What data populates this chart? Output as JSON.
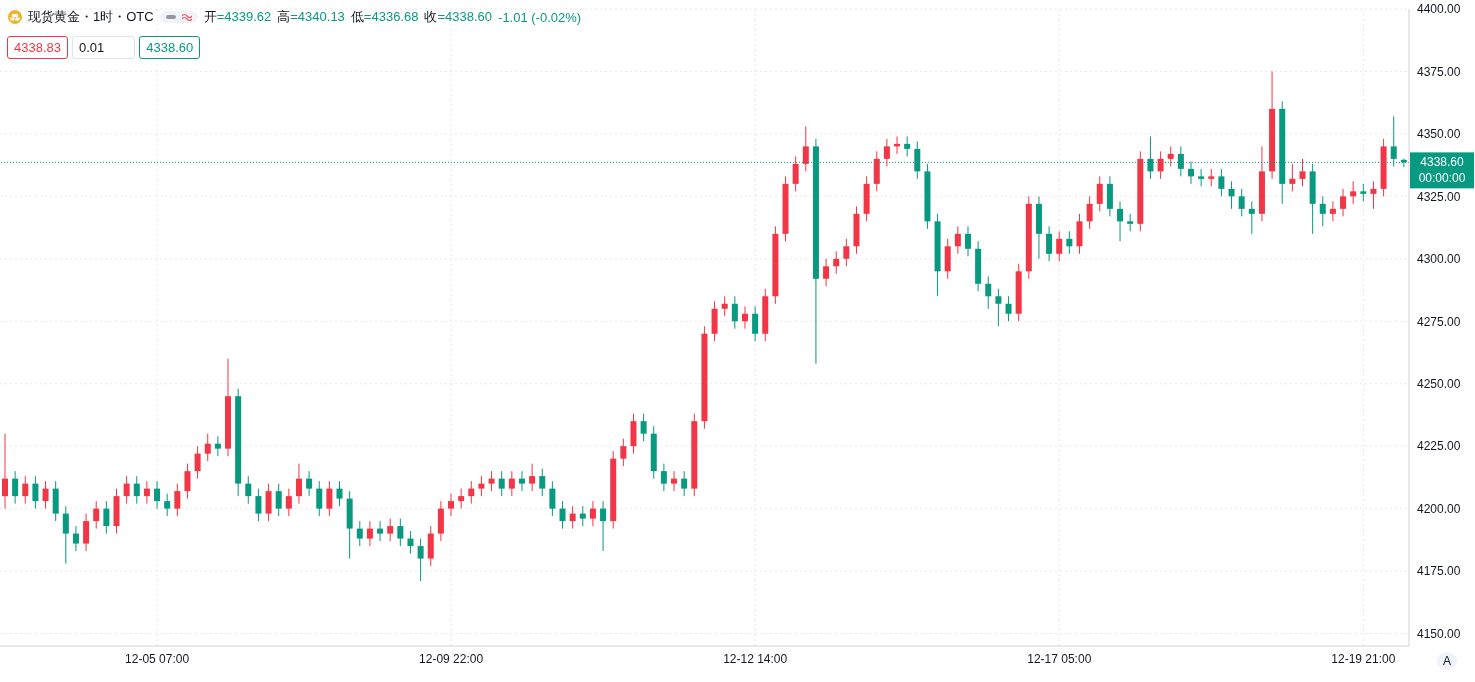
{
  "chart_data": {
    "type": "candlestick",
    "title": "现货黄金・1时・OTC",
    "categories": [
      null,
      null,
      null,
      null,
      null,
      null,
      null,
      null,
      null,
      null,
      null,
      null,
      null,
      null,
      null,
      "12-05 07:00",
      null,
      null,
      null,
      null,
      null,
      null,
      null,
      null,
      null,
      null,
      null,
      null,
      null,
      null,
      null,
      null,
      null,
      null,
      null,
      null,
      null,
      null,
      null,
      null,
      null,
      null,
      null,
      null,
      "12-09 22:00",
      null,
      null,
      null,
      null,
      null,
      null,
      null,
      null,
      null,
      null,
      null,
      null,
      null,
      null,
      null,
      null,
      null,
      null,
      null,
      null,
      null,
      null,
      null,
      null,
      null,
      null,
      null,
      null,
      null,
      "12-12 14:00",
      null,
      null,
      null,
      null,
      null,
      null,
      null,
      null,
      null,
      null,
      null,
      null,
      null,
      null,
      null,
      null,
      null,
      null,
      null,
      null,
      null,
      null,
      null,
      null,
      null,
      null,
      null,
      null,
      null,
      "12-17 05:00",
      null,
      null,
      null,
      null,
      null,
      null,
      null,
      null,
      null,
      null,
      null,
      null,
      null,
      null,
      null,
      null,
      null,
      null,
      null,
      null,
      null,
      null,
      null,
      null,
      null,
      null,
      null,
      null,
      null,
      "12-19 21:00",
      null,
      null,
      null,
      null
    ],
    "ohlc": [
      [
        4205,
        4230,
        4200,
        4212
      ],
      [
        4212,
        4215,
        4202,
        4205
      ],
      [
        4205,
        4213,
        4202,
        4210
      ],
      [
        4210,
        4213,
        4200,
        4203
      ],
      [
        4203,
        4211,
        4200,
        4208
      ],
      [
        4208,
        4211,
        4195,
        4198
      ],
      [
        4198,
        4201,
        4178,
        4190
      ],
      [
        4190,
        4193,
        4183,
        4186
      ],
      [
        4186,
        4198,
        4183,
        4195
      ],
      [
        4195,
        4203,
        4192,
        4200
      ],
      [
        4200,
        4203,
        4190,
        4193
      ],
      [
        4193,
        4208,
        4190,
        4205
      ],
      [
        4205,
        4213,
        4202,
        4210
      ],
      [
        4210,
        4213,
        4202,
        4205
      ],
      [
        4205,
        4211,
        4202,
        4208
      ],
      [
        4208,
        4211,
        4200,
        4203
      ],
      [
        4203,
        4206,
        4197,
        4200
      ],
      [
        4200,
        4210,
        4197,
        4207
      ],
      [
        4207,
        4218,
        4204,
        4215
      ],
      [
        4215,
        4225,
        4212,
        4222
      ],
      [
        4222,
        4230,
        4219,
        4226
      ],
      [
        4226,
        4229,
        4221,
        4224
      ],
      [
        4224,
        4260,
        4221,
        4245
      ],
      [
        4245,
        4248,
        4205,
        4210
      ],
      [
        4210,
        4213,
        4202,
        4205
      ],
      [
        4205,
        4208,
        4195,
        4198
      ],
      [
        4198,
        4210,
        4195,
        4207
      ],
      [
        4207,
        4210,
        4197,
        4200
      ],
      [
        4200,
        4208,
        4197,
        4205
      ],
      [
        4205,
        4218,
        4202,
        4212
      ],
      [
        4212,
        4215,
        4205,
        4208
      ],
      [
        4208,
        4211,
        4197,
        4200
      ],
      [
        4200,
        4211,
        4197,
        4208
      ],
      [
        4208,
        4211,
        4201,
        4204
      ],
      [
        4204,
        4207,
        4180,
        4192
      ],
      [
        4192,
        4195,
        4185,
        4188
      ],
      [
        4188,
        4195,
        4185,
        4192
      ],
      [
        4192,
        4195,
        4187,
        4190
      ],
      [
        4190,
        4196,
        4187,
        4193
      ],
      [
        4193,
        4196,
        4185,
        4188
      ],
      [
        4188,
        4191,
        4182,
        4185
      ],
      [
        4185,
        4188,
        4171,
        4180
      ],
      [
        4180,
        4193,
        4177,
        4190
      ],
      [
        4190,
        4203,
        4187,
        4200
      ],
      [
        4200,
        4206,
        4197,
        4203
      ],
      [
        4203,
        4208,
        4200,
        4205
      ],
      [
        4205,
        4211,
        4202,
        4208
      ],
      [
        4208,
        4213,
        4205,
        4210
      ],
      [
        4210,
        4215,
        4207,
        4212
      ],
      [
        4212,
        4215,
        4205,
        4208
      ],
      [
        4208,
        4215,
        4205,
        4212
      ],
      [
        4212,
        4215,
        4207,
        4210
      ],
      [
        4210,
        4218,
        4207,
        4213
      ],
      [
        4213,
        4216,
        4205,
        4208
      ],
      [
        4208,
        4211,
        4197,
        4200
      ],
      [
        4200,
        4203,
        4192,
        4195
      ],
      [
        4195,
        4201,
        4192,
        4198
      ],
      [
        4198,
        4201,
        4193,
        4196
      ],
      [
        4196,
        4203,
        4193,
        4200
      ],
      [
        4200,
        4203,
        4183,
        4195
      ],
      [
        4195,
        4223,
        4192,
        4220
      ],
      [
        4220,
        4228,
        4217,
        4225
      ],
      [
        4225,
        4238,
        4222,
        4235
      ],
      [
        4235,
        4238,
        4227,
        4230
      ],
      [
        4230,
        4233,
        4212,
        4215
      ],
      [
        4215,
        4218,
        4207,
        4210
      ],
      [
        4210,
        4215,
        4207,
        4212
      ],
      [
        4212,
        4215,
        4205,
        4208
      ],
      [
        4208,
        4238,
        4205,
        4235
      ],
      [
        4235,
        4273,
        4232,
        4270
      ],
      [
        4270,
        4283,
        4267,
        4280
      ],
      [
        4280,
        4285,
        4277,
        4282
      ],
      [
        4282,
        4285,
        4272,
        4275
      ],
      [
        4275,
        4281,
        4272,
        4278
      ],
      [
        4278,
        4281,
        4267,
        4270
      ],
      [
        4270,
        4288,
        4267,
        4285
      ],
      [
        4285,
        4313,
        4282,
        4310
      ],
      [
        4310,
        4333,
        4307,
        4330
      ],
      [
        4330,
        4341,
        4327,
        4338
      ],
      [
        4338,
        4353,
        4335,
        4345
      ],
      [
        4345,
        4348,
        4258,
        4292
      ],
      [
        4292,
        4300,
        4289,
        4297
      ],
      [
        4297,
        4303,
        4294,
        4300
      ],
      [
        4300,
        4308,
        4297,
        4305
      ],
      [
        4305,
        4321,
        4302,
        4318
      ],
      [
        4318,
        4333,
        4315,
        4330
      ],
      [
        4330,
        4343,
        4327,
        4340
      ],
      [
        4340,
        4348,
        4337,
        4345
      ],
      [
        4345,
        4349,
        4342,
        4346
      ],
      [
        4346,
        4349,
        4341,
        4344
      ],
      [
        4344,
        4347,
        4332,
        4335
      ],
      [
        4335,
        4338,
        4312,
        4315
      ],
      [
        4315,
        4318,
        4285,
        4295
      ],
      [
        4295,
        4308,
        4292,
        4305
      ],
      [
        4305,
        4313,
        4302,
        4310
      ],
      [
        4310,
        4313,
        4301,
        4304
      ],
      [
        4304,
        4307,
        4287,
        4290
      ],
      [
        4290,
        4293,
        4280,
        4285
      ],
      [
        4285,
        4288,
        4273,
        4282
      ],
      [
        4282,
        4285,
        4275,
        4278
      ],
      [
        4278,
        4298,
        4275,
        4295
      ],
      [
        4295,
        4325,
        4292,
        4322
      ],
      [
        4322,
        4325,
        4300,
        4310
      ],
      [
        4310,
        4313,
        4299,
        4302
      ],
      [
        4302,
        4311,
        4299,
        4308
      ],
      [
        4308,
        4311,
        4302,
        4305
      ],
      [
        4305,
        4318,
        4302,
        4315
      ],
      [
        4315,
        4325,
        4312,
        4322
      ],
      [
        4322,
        4333,
        4319,
        4330
      ],
      [
        4330,
        4333,
        4317,
        4320
      ],
      [
        4320,
        4323,
        4307,
        4315
      ],
      [
        4315,
        4318,
        4311,
        4314
      ],
      [
        4314,
        4343,
        4311,
        4340
      ],
      [
        4340,
        4349,
        4332,
        4335
      ],
      [
        4335,
        4343,
        4332,
        4340
      ],
      [
        4340,
        4345,
        4337,
        4342
      ],
      [
        4342,
        4345,
        4333,
        4336
      ],
      [
        4336,
        4339,
        4330,
        4333
      ],
      [
        4333,
        4336,
        4329,
        4332
      ],
      [
        4332,
        4336,
        4329,
        4333
      ],
      [
        4333,
        4336,
        4325,
        4328
      ],
      [
        4328,
        4331,
        4320,
        4325
      ],
      [
        4325,
        4328,
        4317,
        4320
      ],
      [
        4320,
        4323,
        4310,
        4318
      ],
      [
        4318,
        4345,
        4315,
        4335
      ],
      [
        4335,
        4375,
        4332,
        4360
      ],
      [
        4360,
        4363,
        4322,
        4330
      ],
      [
        4330,
        4338,
        4327,
        4332
      ],
      [
        4332,
        4340,
        4329,
        4335
      ],
      [
        4335,
        4338,
        4310,
        4322
      ],
      [
        4322,
        4325,
        4313,
        4318
      ],
      [
        4318,
        4323,
        4315,
        4320
      ],
      [
        4320,
        4328,
        4317,
        4325
      ],
      [
        4325,
        4331,
        4322,
        4327
      ],
      [
        4327,
        4330,
        4323,
        4326
      ],
      [
        4326,
        4331,
        4320,
        4328
      ],
      [
        4328,
        4348,
        4325,
        4345
      ],
      [
        4345,
        4357,
        4337,
        4340
      ],
      [
        4339.62,
        4340.13,
        4336.68,
        4338.6
      ]
    ],
    "colors": [
      "#f23645",
      "#089981",
      "#f23645",
      "#089981",
      "#f23645",
      "#089981",
      "#089981",
      "#089981",
      "#f23645",
      "#f23645",
      "#089981",
      "#f23645",
      "#f23645",
      "#089981",
      "#f23645",
      "#089981",
      "#089981",
      "#f23645",
      "#f23645",
      "#f23645",
      "#f23645",
      "#089981",
      "#f23645",
      "#089981",
      "#089981",
      "#089981",
      "#f23645",
      "#089981",
      "#f23645",
      "#f23645",
      "#089981",
      "#089981",
      "#f23645",
      "#089981",
      "#089981",
      "#089981",
      "#f23645",
      "#089981",
      "#f23645",
      "#089981",
      "#089981",
      "#089981",
      "#f23645",
      "#f23645",
      "#f23645",
      "#f23645",
      "#f23645",
      "#f23645",
      "#f23645",
      "#089981",
      "#f23645",
      "#089981",
      "#f23645",
      "#089981",
      "#089981",
      "#089981",
      "#f23645",
      "#089981",
      "#f23645",
      "#089981",
      "#f23645",
      "#f23645",
      "#f23645",
      "#089981",
      "#089981",
      "#089981",
      "#f23645",
      "#089981",
      "#f23645",
      "#f23645",
      "#f23645",
      "#f23645",
      "#089981",
      "#f23645",
      "#089981",
      "#f23645",
      "#f23645",
      "#f23645",
      "#f23645",
      "#f23645",
      "#089981",
      "#f23645",
      "#f23645",
      "#f23645",
      "#f23645",
      "#f23645",
      "#f23645",
      "#f23645",
      "#f23645",
      "#089981",
      "#089981",
      "#089981",
      "#089981",
      "#f23645",
      "#f23645",
      "#089981",
      "#089981",
      "#089981",
      "#089981",
      "#089981",
      "#f23645",
      "#f23645",
      "#089981",
      "#089981",
      "#f23645",
      "#089981",
      "#f23645",
      "#f23645",
      "#f23645",
      "#089981",
      "#089981",
      "#089981",
      "#f23645",
      "#089981",
      "#f23645",
      "#f23645",
      "#089981",
      "#089981",
      "#089981",
      "#f23645",
      "#089981",
      "#089981",
      "#089981",
      "#089981",
      "#f23645",
      "#f23645",
      "#089981",
      "#f23645",
      "#f23645",
      "#089981",
      "#089981",
      "#f23645",
      "#f23645",
      "#f23645",
      "#089981",
      "#f23645",
      "#f23645",
      "#089981",
      "#089981"
    ],
    "ylim": [
      4145,
      4400
    ],
    "yticks": [
      {
        "value": 4150,
        "label": "4150.00"
      },
      {
        "value": 4175,
        "label": "4175.00"
      },
      {
        "value": 4200,
        "label": "4200.00"
      },
      {
        "value": 4225,
        "label": "4225.00"
      },
      {
        "value": 4250,
        "label": "4250.00"
      },
      {
        "value": 4275,
        "label": "4275.00"
      },
      {
        "value": 4300,
        "label": "4300.00"
      },
      {
        "value": 4325,
        "label": "4325.00"
      },
      {
        "value": 4350,
        "label": "4350.00"
      },
      {
        "value": 4375,
        "label": "4375.00"
      },
      {
        "value": 4400,
        "label": "4400.00"
      }
    ],
    "grid": true,
    "ref_lines": [
      {
        "axis": "y",
        "value": 4338.6,
        "label": "4338.60",
        "color": "#089981",
        "line_style": "dotted"
      }
    ],
    "annotations": [
      "开=4339.62",
      "高=4340.13",
      "低=4336.68",
      "收=4338.60",
      "-1.01 (-0.02%)",
      "4338.83",
      "0.01",
      "4338.60",
      "00:00:00",
      "A"
    ]
  }
}
